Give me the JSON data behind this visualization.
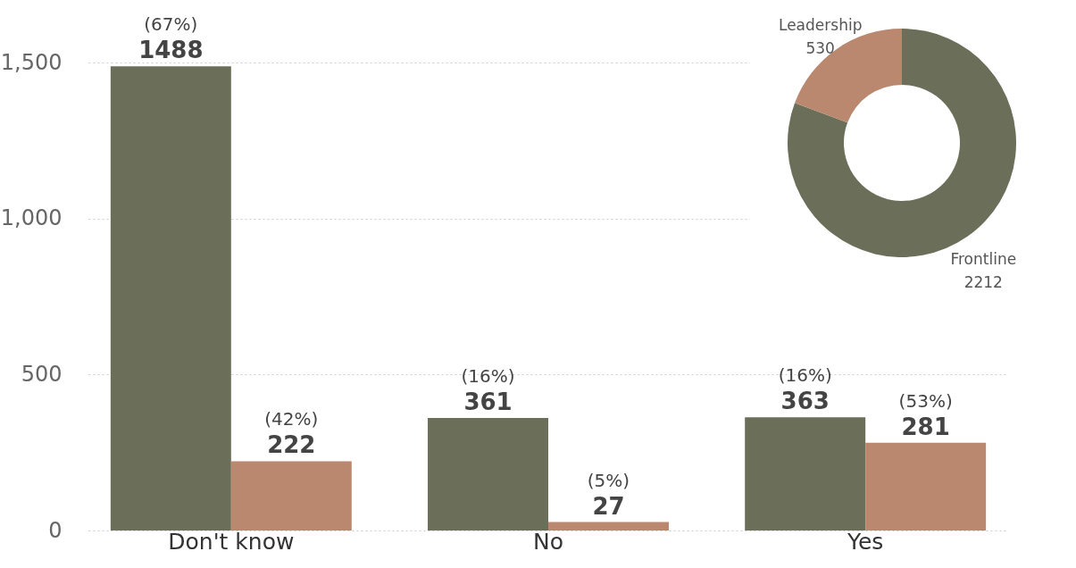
{
  "chart_data": [
    {
      "type": "bar",
      "categories": [
        "Don't know",
        "No",
        "Yes"
      ],
      "ylim": [
        0,
        1500
      ],
      "yticks": [
        0,
        500,
        {
          "value": 1000,
          "label": "1,000"
        },
        {
          "value": 1500,
          "label": "1,500"
        }
      ],
      "grid": "y",
      "series": [
        {
          "color": "#6b6e58",
          "values": [
            1488,
            361,
            363
          ],
          "value_labels": [
            "(67%)\n1488",
            "(16%)\n361",
            "(16%)\n363"
          ]
        },
        {
          "color": "#b9886f",
          "values": [
            222,
            27,
            281
          ],
          "value_labels": [
            "(42%)\n222",
            "(5%)\n27",
            "(53%)\n281"
          ]
        }
      ]
    },
    {
      "type": "donut",
      "categories": [
        "Frontline",
        "Leadership"
      ],
      "values": [
        2212,
        530
      ],
      "colors": [
        "#6b6e58",
        "#b9886f"
      ],
      "data_labels": true
    }
  ]
}
